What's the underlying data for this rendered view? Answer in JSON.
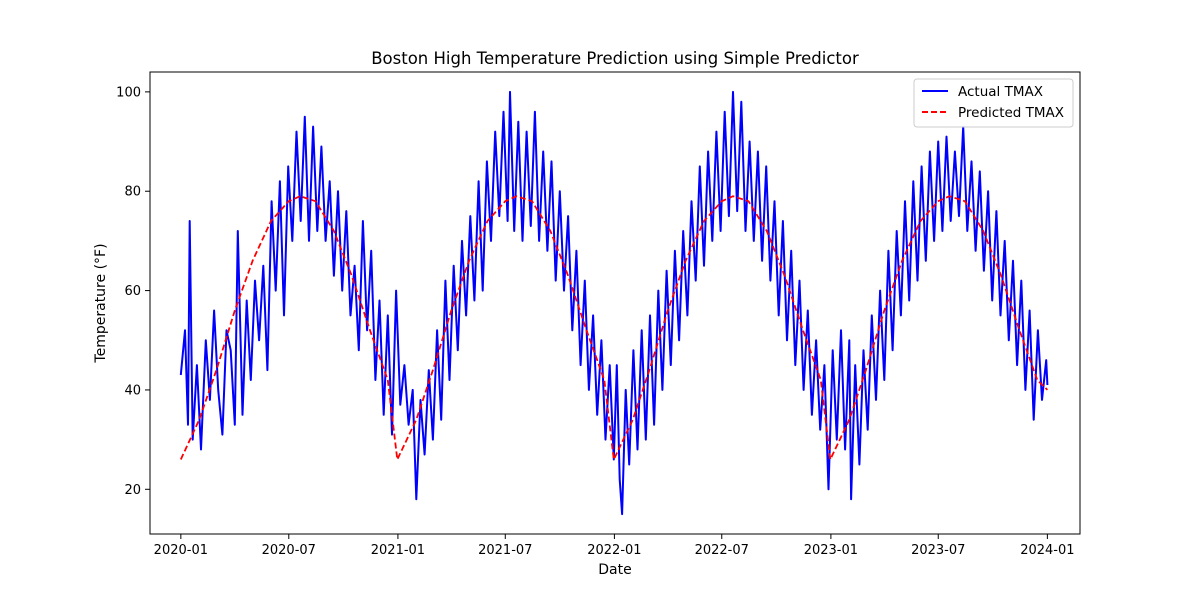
{
  "chart_data": {
    "type": "line",
    "title": "Boston High Temperature Prediction using Simple Predictor",
    "xlabel": "Date",
    "ylabel": "Temperature (°F)",
    "x_ticks": [
      "2020-01",
      "2020-07",
      "2021-01",
      "2021-07",
      "2022-01",
      "2022-07",
      "2023-01",
      "2023-07",
      "2024-01"
    ],
    "y_ticks": [
      20,
      40,
      60,
      80,
      100
    ],
    "ylim": [
      11,
      104
    ],
    "x_range": [
      "2019-11-10",
      "2024-02-25"
    ],
    "grid": false,
    "legend_position": "top-right",
    "series": [
      {
        "name": "Actual TMAX",
        "color": "#0000ff",
        "style": "solid",
        "points": [
          [
            "2020-01-01",
            43
          ],
          [
            "2020-01-08",
            52
          ],
          [
            "2020-01-13",
            33
          ],
          [
            "2020-01-16",
            74
          ],
          [
            "2020-01-21",
            30
          ],
          [
            "2020-01-28",
            45
          ],
          [
            "2020-02-04",
            28
          ],
          [
            "2020-02-12",
            50
          ],
          [
            "2020-02-19",
            38
          ],
          [
            "2020-02-26",
            56
          ],
          [
            "2020-03-04",
            40
          ],
          [
            "2020-03-11",
            31
          ],
          [
            "2020-03-18",
            52
          ],
          [
            "2020-03-25",
            48
          ],
          [
            "2020-04-01",
            33
          ],
          [
            "2020-04-06",
            72
          ],
          [
            "2020-04-14",
            35
          ],
          [
            "2020-04-21",
            58
          ],
          [
            "2020-04-28",
            42
          ],
          [
            "2020-05-05",
            62
          ],
          [
            "2020-05-12",
            50
          ],
          [
            "2020-05-19",
            65
          ],
          [
            "2020-05-26",
            44
          ],
          [
            "2020-06-02",
            78
          ],
          [
            "2020-06-09",
            60
          ],
          [
            "2020-06-16",
            82
          ],
          [
            "2020-06-23",
            55
          ],
          [
            "2020-06-30",
            85
          ],
          [
            "2020-07-07",
            70
          ],
          [
            "2020-07-14",
            92
          ],
          [
            "2020-07-21",
            74
          ],
          [
            "2020-07-28",
            95
          ],
          [
            "2020-08-04",
            70
          ],
          [
            "2020-08-11",
            93
          ],
          [
            "2020-08-18",
            72
          ],
          [
            "2020-08-25",
            89
          ],
          [
            "2020-09-01",
            70
          ],
          [
            "2020-09-08",
            82
          ],
          [
            "2020-09-15",
            63
          ],
          [
            "2020-09-22",
            80
          ],
          [
            "2020-09-29",
            60
          ],
          [
            "2020-10-06",
            76
          ],
          [
            "2020-10-13",
            55
          ],
          [
            "2020-10-20",
            65
          ],
          [
            "2020-10-27",
            48
          ],
          [
            "2020-11-03",
            74
          ],
          [
            "2020-11-10",
            52
          ],
          [
            "2020-11-17",
            68
          ],
          [
            "2020-11-24",
            42
          ],
          [
            "2020-12-01",
            58
          ],
          [
            "2020-12-08",
            35
          ],
          [
            "2020-12-15",
            55
          ],
          [
            "2020-12-22",
            31
          ],
          [
            "2020-12-29",
            60
          ],
          [
            "2021-01-05",
            37
          ],
          [
            "2021-01-12",
            45
          ],
          [
            "2021-01-19",
            33
          ],
          [
            "2021-01-26",
            40
          ],
          [
            "2021-02-01",
            18
          ],
          [
            "2021-02-08",
            38
          ],
          [
            "2021-02-15",
            27
          ],
          [
            "2021-02-22",
            44
          ],
          [
            "2021-03-01",
            30
          ],
          [
            "2021-03-08",
            52
          ],
          [
            "2021-03-15",
            34
          ],
          [
            "2021-03-22",
            62
          ],
          [
            "2021-03-29",
            42
          ],
          [
            "2021-04-05",
            65
          ],
          [
            "2021-04-12",
            48
          ],
          [
            "2021-04-19",
            70
          ],
          [
            "2021-04-26",
            55
          ],
          [
            "2021-05-03",
            75
          ],
          [
            "2021-05-10",
            58
          ],
          [
            "2021-05-17",
            82
          ],
          [
            "2021-05-24",
            60
          ],
          [
            "2021-05-31",
            86
          ],
          [
            "2021-06-07",
            70
          ],
          [
            "2021-06-14",
            92
          ],
          [
            "2021-06-21",
            75
          ],
          [
            "2021-06-28",
            96
          ],
          [
            "2021-07-05",
            74
          ],
          [
            "2021-07-09",
            100
          ],
          [
            "2021-07-16",
            72
          ],
          [
            "2021-07-23",
            94
          ],
          [
            "2021-07-30",
            70
          ],
          [
            "2021-08-06",
            92
          ],
          [
            "2021-08-13",
            73
          ],
          [
            "2021-08-20",
            96
          ],
          [
            "2021-08-27",
            70
          ],
          [
            "2021-09-03",
            88
          ],
          [
            "2021-09-10",
            68
          ],
          [
            "2021-09-17",
            86
          ],
          [
            "2021-09-24",
            62
          ],
          [
            "2021-10-01",
            80
          ],
          [
            "2021-10-08",
            60
          ],
          [
            "2021-10-15",
            75
          ],
          [
            "2021-10-22",
            52
          ],
          [
            "2021-10-29",
            68
          ],
          [
            "2021-11-05",
            45
          ],
          [
            "2021-11-12",
            62
          ],
          [
            "2021-11-19",
            40
          ],
          [
            "2021-11-26",
            55
          ],
          [
            "2021-12-03",
            35
          ],
          [
            "2021-12-10",
            50
          ],
          [
            "2021-12-17",
            30
          ],
          [
            "2021-12-24",
            45
          ],
          [
            "2021-12-31",
            26
          ],
          [
            "2022-01-05",
            45
          ],
          [
            "2022-01-10",
            22
          ],
          [
            "2022-01-14",
            15
          ],
          [
            "2022-01-20",
            40
          ],
          [
            "2022-01-26",
            25
          ],
          [
            "2022-02-02",
            48
          ],
          [
            "2022-02-09",
            28
          ],
          [
            "2022-02-16",
            52
          ],
          [
            "2022-02-23",
            30
          ],
          [
            "2022-03-02",
            55
          ],
          [
            "2022-03-09",
            33
          ],
          [
            "2022-03-16",
            60
          ],
          [
            "2022-03-23",
            40
          ],
          [
            "2022-03-30",
            64
          ],
          [
            "2022-04-06",
            45
          ],
          [
            "2022-04-13",
            68
          ],
          [
            "2022-04-20",
            50
          ],
          [
            "2022-04-27",
            72
          ],
          [
            "2022-05-04",
            55
          ],
          [
            "2022-05-11",
            78
          ],
          [
            "2022-05-18",
            62
          ],
          [
            "2022-05-25",
            85
          ],
          [
            "2022-06-01",
            65
          ],
          [
            "2022-06-08",
            88
          ],
          [
            "2022-06-15",
            70
          ],
          [
            "2022-06-22",
            92
          ],
          [
            "2022-06-29",
            72
          ],
          [
            "2022-07-06",
            96
          ],
          [
            "2022-07-13",
            75
          ],
          [
            "2022-07-20",
            100
          ],
          [
            "2022-07-27",
            76
          ],
          [
            "2022-08-03",
            98
          ],
          [
            "2022-08-10",
            72
          ],
          [
            "2022-08-17",
            90
          ],
          [
            "2022-08-24",
            70
          ],
          [
            "2022-08-31",
            88
          ],
          [
            "2022-09-07",
            66
          ],
          [
            "2022-09-14",
            85
          ],
          [
            "2022-09-21",
            62
          ],
          [
            "2022-09-28",
            78
          ],
          [
            "2022-10-05",
            55
          ],
          [
            "2022-10-12",
            74
          ],
          [
            "2022-10-19",
            50
          ],
          [
            "2022-10-26",
            68
          ],
          [
            "2022-11-02",
            45
          ],
          [
            "2022-11-09",
            62
          ],
          [
            "2022-11-16",
            40
          ],
          [
            "2022-11-23",
            56
          ],
          [
            "2022-11-30",
            35
          ],
          [
            "2022-12-07",
            50
          ],
          [
            "2022-12-14",
            32
          ],
          [
            "2022-12-21",
            45
          ],
          [
            "2022-12-28",
            20
          ],
          [
            "2023-01-04",
            48
          ],
          [
            "2023-01-11",
            30
          ],
          [
            "2023-01-18",
            52
          ],
          [
            "2023-01-25",
            28
          ],
          [
            "2023-02-01",
            50
          ],
          [
            "2023-02-04",
            18
          ],
          [
            "2023-02-11",
            45
          ],
          [
            "2023-02-18",
            25
          ],
          [
            "2023-02-25",
            48
          ],
          [
            "2023-03-04",
            32
          ],
          [
            "2023-03-11",
            55
          ],
          [
            "2023-03-18",
            38
          ],
          [
            "2023-03-25",
            60
          ],
          [
            "2023-04-01",
            42
          ],
          [
            "2023-04-08",
            68
          ],
          [
            "2023-04-15",
            48
          ],
          [
            "2023-04-22",
            72
          ],
          [
            "2023-04-29",
            55
          ],
          [
            "2023-05-06",
            78
          ],
          [
            "2023-05-13",
            58
          ],
          [
            "2023-05-20",
            82
          ],
          [
            "2023-05-27",
            62
          ],
          [
            "2023-06-03",
            85
          ],
          [
            "2023-06-10",
            66
          ],
          [
            "2023-06-17",
            88
          ],
          [
            "2023-06-24",
            70
          ],
          [
            "2023-07-01",
            90
          ],
          [
            "2023-07-08",
            72
          ],
          [
            "2023-07-15",
            91
          ],
          [
            "2023-07-22",
            74
          ],
          [
            "2023-07-29",
            88
          ],
          [
            "2023-08-05",
            75
          ],
          [
            "2023-08-12",
            93
          ],
          [
            "2023-08-19",
            72
          ],
          [
            "2023-08-26",
            86
          ],
          [
            "2023-09-02",
            68
          ],
          [
            "2023-09-09",
            84
          ],
          [
            "2023-09-16",
            64
          ],
          [
            "2023-09-23",
            80
          ],
          [
            "2023-09-30",
            58
          ],
          [
            "2023-10-07",
            76
          ],
          [
            "2023-10-14",
            55
          ],
          [
            "2023-10-21",
            70
          ],
          [
            "2023-10-28",
            50
          ],
          [
            "2023-11-04",
            66
          ],
          [
            "2023-11-11",
            45
          ],
          [
            "2023-11-18",
            62
          ],
          [
            "2023-11-25",
            40
          ],
          [
            "2023-12-02",
            56
          ],
          [
            "2023-12-09",
            34
          ],
          [
            "2023-12-16",
            52
          ],
          [
            "2023-12-23",
            38
          ],
          [
            "2023-12-30",
            46
          ],
          [
            "2024-01-01",
            41
          ]
        ]
      },
      {
        "name": "Predicted TMAX",
        "color": "#ff0000",
        "style": "dashed",
        "points": [
          [
            "2020-01-01",
            26
          ],
          [
            "2020-02-01",
            34
          ],
          [
            "2020-03-01",
            44
          ],
          [
            "2020-04-01",
            56
          ],
          [
            "2020-05-01",
            66
          ],
          [
            "2020-06-01",
            74
          ],
          [
            "2020-07-01",
            78
          ],
          [
            "2020-07-20",
            79
          ],
          [
            "2020-08-15",
            78
          ],
          [
            "2020-09-15",
            72
          ],
          [
            "2020-10-15",
            63
          ],
          [
            "2020-11-15",
            52
          ],
          [
            "2020-12-15",
            42
          ],
          [
            "2020-12-31",
            26
          ],
          [
            "2021-02-01",
            34
          ],
          [
            "2021-03-01",
            44
          ],
          [
            "2021-04-01",
            56
          ],
          [
            "2021-05-01",
            66
          ],
          [
            "2021-06-01",
            74
          ],
          [
            "2021-07-01",
            78
          ],
          [
            "2021-07-20",
            79
          ],
          [
            "2021-08-15",
            78
          ],
          [
            "2021-09-15",
            72
          ],
          [
            "2021-10-15",
            63
          ],
          [
            "2021-11-15",
            52
          ],
          [
            "2021-12-15",
            42
          ],
          [
            "2021-12-31",
            26
          ],
          [
            "2022-02-01",
            34
          ],
          [
            "2022-03-01",
            44
          ],
          [
            "2022-04-01",
            56
          ],
          [
            "2022-05-01",
            66
          ],
          [
            "2022-06-01",
            74
          ],
          [
            "2022-07-01",
            78
          ],
          [
            "2022-07-20",
            79
          ],
          [
            "2022-08-15",
            78
          ],
          [
            "2022-09-15",
            72
          ],
          [
            "2022-10-15",
            63
          ],
          [
            "2022-11-15",
            52
          ],
          [
            "2022-12-15",
            42
          ],
          [
            "2022-12-31",
            26
          ],
          [
            "2023-02-01",
            34
          ],
          [
            "2023-03-01",
            44
          ],
          [
            "2023-04-01",
            56
          ],
          [
            "2023-05-01",
            66
          ],
          [
            "2023-06-01",
            74
          ],
          [
            "2023-07-01",
            78
          ],
          [
            "2023-07-20",
            79
          ],
          [
            "2023-08-15",
            78
          ],
          [
            "2023-09-15",
            72
          ],
          [
            "2023-10-15",
            63
          ],
          [
            "2023-11-15",
            52
          ],
          [
            "2023-12-15",
            42
          ],
          [
            "2024-01-01",
            40
          ]
        ]
      }
    ]
  }
}
